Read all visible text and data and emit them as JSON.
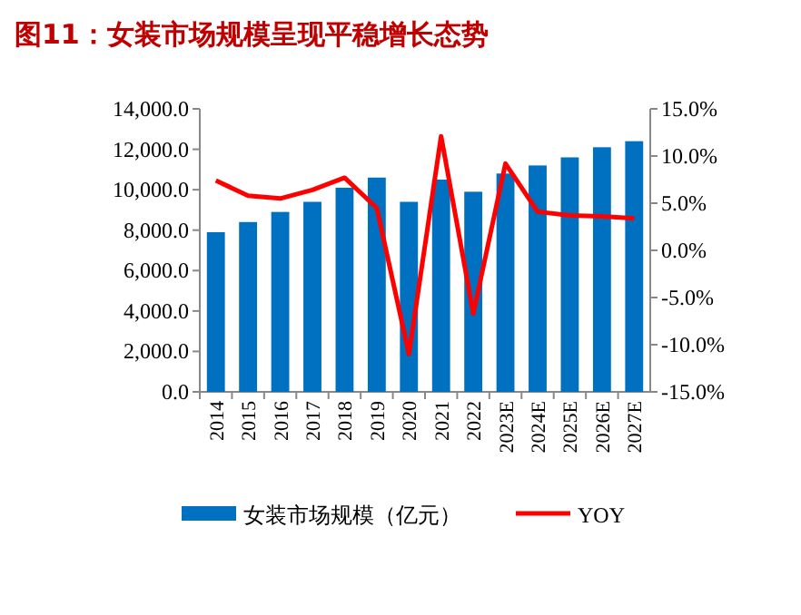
{
  "chart_data": {
    "type": "bar",
    "title": "图11：女装市场规模呈现平稳增长态势",
    "categories": [
      "2014",
      "2015",
      "2016",
      "2017",
      "2018",
      "2019",
      "2020",
      "2021",
      "2022",
      "2023E",
      "2024E",
      "2025E",
      "2026E",
      "2027E"
    ],
    "series": [
      {
        "name": "女装市场规模（亿元）",
        "color": "#0070c0",
        "values": [
          7900,
          8400,
          8900,
          9400,
          10100,
          10600,
          9400,
          10500,
          9900,
          10800,
          11200,
          11600,
          12100,
          12400
        ]
      },
      {
        "name": "YOY",
        "type": "line",
        "axis": "y2",
        "color": "#ff0000",
        "values": [
          7.4,
          5.8,
          5.5,
          6.4,
          7.7,
          4.5,
          -11.0,
          12.1,
          -6.7,
          9.2,
          4.1,
          3.7,
          3.6,
          3.4
        ]
      }
    ],
    "ylim": [
      0,
      14000
    ],
    "yticks": [
      {
        "value": 0,
        "label": "0.0"
      },
      {
        "value": 2000,
        "label": "2,000.0"
      },
      {
        "value": 4000,
        "label": "4,000.0"
      },
      {
        "value": 6000,
        "label": "6,000.0"
      },
      {
        "value": 8000,
        "label": "8,000.0"
      },
      {
        "value": 10000,
        "label": "10,000.0"
      },
      {
        "value": 12000,
        "label": "12,000.0"
      },
      {
        "value": 14000,
        "label": "14,000.0"
      }
    ],
    "y2lim": [
      -15,
      15
    ],
    "y2ticks": [
      {
        "value": -15,
        "label": "-15.0%"
      },
      {
        "value": -10,
        "label": "-10.0%"
      },
      {
        "value": -5,
        "label": "-5.0%"
      },
      {
        "value": 0,
        "label": "0.0%"
      },
      {
        "value": 5,
        "label": "5.0%"
      },
      {
        "value": 10,
        "label": "10.0%"
      },
      {
        "value": 15,
        "label": "15.0%"
      }
    ],
    "grid": false,
    "legend": "bottom",
    "marker": "none"
  }
}
